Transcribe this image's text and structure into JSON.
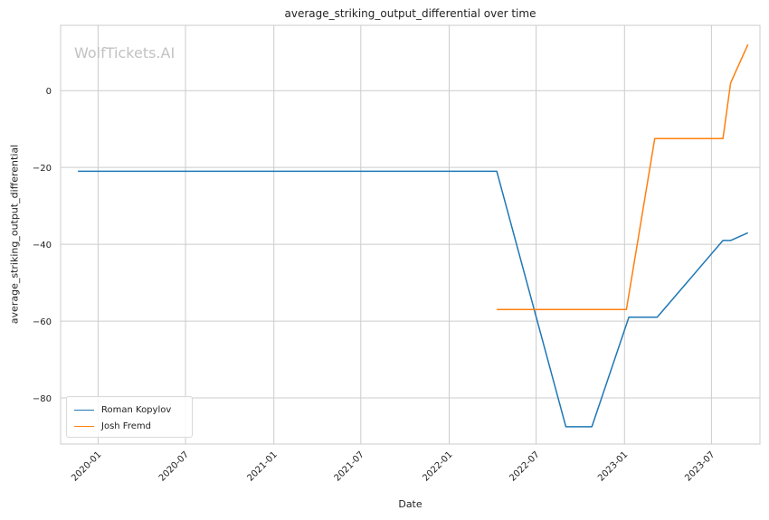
{
  "watermark": "WolfTickets.AI",
  "chart_data": {
    "type": "line",
    "title": "average_striking_output_differential over time",
    "xlabel": "Date",
    "ylabel": "average_striking_output_differential",
    "x_tick_labels": [
      "2020-01",
      "2020-07",
      "2021-01",
      "2021-07",
      "2022-01",
      "2022-07",
      "2023-01",
      "2023-07"
    ],
    "y_ticks": [
      0,
      -20,
      -40,
      -60,
      -80
    ],
    "y_tick_labels": [
      "0",
      "−20",
      "−40",
      "−60",
      "−80"
    ],
    "xlim": [
      "2019-10-15",
      "2023-10-10"
    ],
    "ylim": [
      -92,
      17
    ],
    "grid": true,
    "legend_position": "lower-left",
    "series": [
      {
        "name": "Roman Kopylov",
        "color": "#1f77b4",
        "points": [
          {
            "x": "2019-11-20",
            "y": -21
          },
          {
            "x": "2022-04-10",
            "y": -21
          },
          {
            "x": "2022-09-01",
            "y": -87.5
          },
          {
            "x": "2022-10-25",
            "y": -87.5
          },
          {
            "x": "2023-01-10",
            "y": -59
          },
          {
            "x": "2023-03-10",
            "y": -59
          },
          {
            "x": "2023-07-25",
            "y": -39
          },
          {
            "x": "2023-08-10",
            "y": -39
          },
          {
            "x": "2023-09-15",
            "y": -37
          }
        ]
      },
      {
        "name": "Josh Fremd",
        "color": "#ff7f0e",
        "points": [
          {
            "x": "2022-04-10",
            "y": -57
          },
          {
            "x": "2023-01-05",
            "y": -57
          },
          {
            "x": "2023-03-05",
            "y": -12.5
          },
          {
            "x": "2023-07-25",
            "y": -12.5
          },
          {
            "x": "2023-08-10",
            "y": 2
          },
          {
            "x": "2023-09-15",
            "y": 12
          }
        ]
      }
    ]
  }
}
